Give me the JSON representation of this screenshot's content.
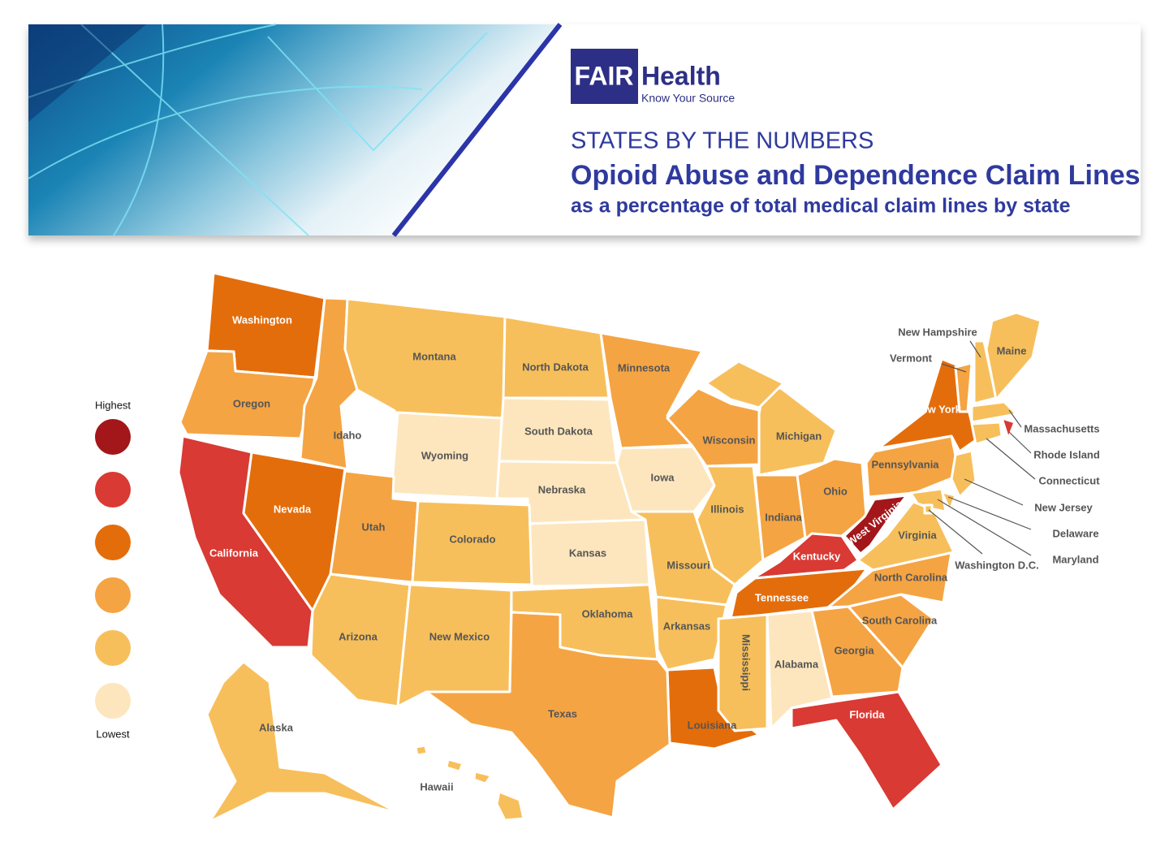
{
  "header": {
    "logo_fair": "FAIR",
    "logo_health": "Health",
    "logo_tagline": "Know Your Source",
    "kicker": "STATES BY THE NUMBERS",
    "title": "Opioid Abuse and Dependence Claim Lines",
    "subtitle": "as a percentage of total medical claim lines by state"
  },
  "legend": {
    "high_label": "Highest",
    "low_label": "Lowest",
    "colors": [
      "#a3161a",
      "#d93a34",
      "#e46d0b",
      "#f5a443",
      "#f7bf5b",
      "#fde6bd"
    ]
  },
  "states": [
    {
      "name": "Washington",
      "color": "#e46d0b"
    },
    {
      "name": "Oregon",
      "color": "#f5a443"
    },
    {
      "name": "Idaho",
      "color": "#f5a443"
    },
    {
      "name": "Montana",
      "color": "#f7bf5b"
    },
    {
      "name": "Wyoming",
      "color": "#fde6bd"
    },
    {
      "name": "North Dakota",
      "color": "#f7bf5b"
    },
    {
      "name": "South Dakota",
      "color": "#fde6bd"
    },
    {
      "name": "Nebraska",
      "color": "#fde6bd"
    },
    {
      "name": "Kansas",
      "color": "#fde6bd"
    },
    {
      "name": "Minnesota",
      "color": "#f5a443"
    },
    {
      "name": "Iowa",
      "color": "#fde6bd"
    },
    {
      "name": "Wisconsin",
      "color": "#f5a443"
    },
    {
      "name": "Michigan",
      "color": "#f7bf5b"
    },
    {
      "name": "Illinois",
      "color": "#f7bf5b"
    },
    {
      "name": "Indiana",
      "color": "#f5a443"
    },
    {
      "name": "Ohio",
      "color": "#f5a443"
    },
    {
      "name": "Kentucky",
      "color": "#d93a34"
    },
    {
      "name": "Tennessee",
      "color": "#e46d0b"
    },
    {
      "name": "Missouri",
      "color": "#f7bf5b"
    },
    {
      "name": "Arkansas",
      "color": "#f7bf5b"
    },
    {
      "name": "Louisiana",
      "color": "#e46d0b"
    },
    {
      "name": "Mississippi",
      "color": "#f7bf5b"
    },
    {
      "name": "Alabama",
      "color": "#fde6bd"
    },
    {
      "name": "Georgia",
      "color": "#f5a443"
    },
    {
      "name": "Florida",
      "color": "#d93a34"
    },
    {
      "name": "South Carolina",
      "color": "#f5a443"
    },
    {
      "name": "North Carolina",
      "color": "#f5a443"
    },
    {
      "name": "Virginia",
      "color": "#f7bf5b"
    },
    {
      "name": "West Virginia",
      "color": "#a3161a"
    },
    {
      "name": "Pennsylvania",
      "color": "#f5a443"
    },
    {
      "name": "New York",
      "color": "#e46d0b"
    },
    {
      "name": "New Jersey",
      "color": "#f7bf5b"
    },
    {
      "name": "Delaware",
      "color": "#f7bf5b"
    },
    {
      "name": "Maryland",
      "color": "#f7bf5b"
    },
    {
      "name": "Washington D.C.",
      "color": "#f7bf5b"
    },
    {
      "name": "Vermont",
      "color": "#f5a443"
    },
    {
      "name": "New Hampshire",
      "color": "#f7bf5b"
    },
    {
      "name": "Maine",
      "color": "#f7bf5b"
    },
    {
      "name": "Massachusetts",
      "color": "#f7bf5b"
    },
    {
      "name": "Rhode Island",
      "color": "#d93a34"
    },
    {
      "name": "Connecticut",
      "color": "#f7bf5b"
    },
    {
      "name": "California",
      "color": "#d93a34"
    },
    {
      "name": "Nevada",
      "color": "#e46d0b"
    },
    {
      "name": "Utah",
      "color": "#f5a443"
    },
    {
      "name": "Colorado",
      "color": "#f7bf5b"
    },
    {
      "name": "Arizona",
      "color": "#f7bf5b"
    },
    {
      "name": "New Mexico",
      "color": "#f7bf5b"
    },
    {
      "name": "Oklahoma",
      "color": "#f7bf5b"
    },
    {
      "name": "Texas",
      "color": "#f5a443"
    },
    {
      "name": "Alaska",
      "color": "#f7bf5b"
    },
    {
      "name": "Hawaii",
      "color": "#f7bf5b"
    }
  ]
}
